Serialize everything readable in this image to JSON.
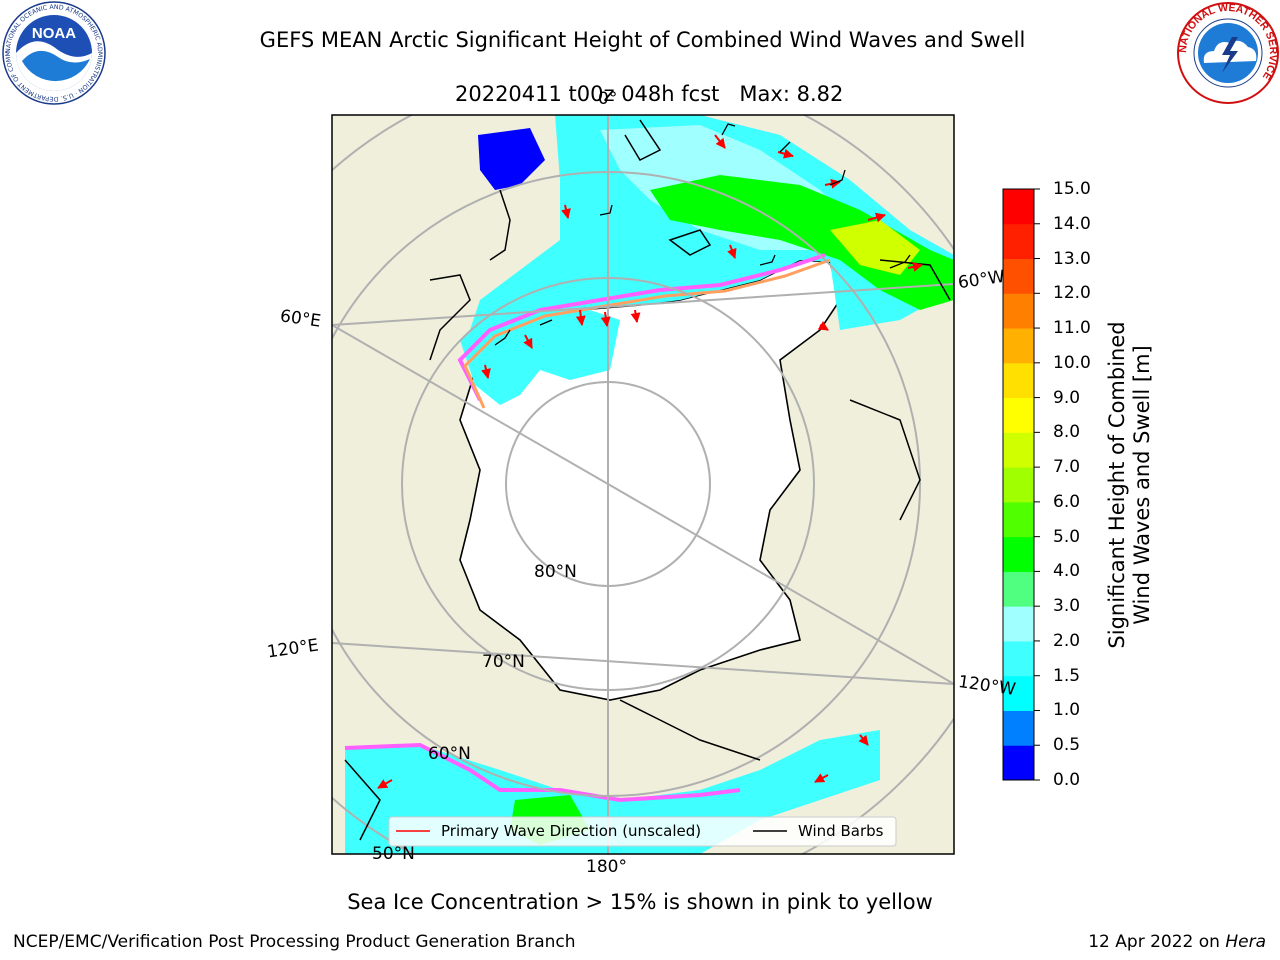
{
  "title": {
    "line1": "GEFS MEAN Arctic Significant Height of Combined Wind Waves and Swell",
    "line2": "20220411 t00z 048h fcst",
    "max_text": "Max: 8.82"
  },
  "logos": {
    "noaa_text": "NOAA",
    "noaa_ring_text": "NATIONAL OCEANIC AND ATMOSPHERIC ADMINISTRATION · U.S. DEPARTMENT OF COMMERCE",
    "nws_ring_text": "NATIONAL WEATHER SERVICE"
  },
  "map": {
    "projection": "north-polar-stereographic",
    "lon_labels": [
      "0°",
      "60°W",
      "120°W",
      "180°",
      "120°E",
      "60°E"
    ],
    "lat_labels": [
      "80°N",
      "70°N",
      "60°N",
      "50°N"
    ],
    "land_color": "#efefdc",
    "ocean_ice_color": "#ffffff",
    "graticule_color": "#b0b0b0"
  },
  "legend": {
    "wave_direction": "Primary Wave Direction (unscaled)",
    "wind_barbs": "Wind Barbs",
    "wave_color": "#ff0000",
    "barb_color": "#000000"
  },
  "colorbar": {
    "label_line1": "Significant Height of Combined",
    "label_line2": "Wind Waves and Swell [m]",
    "ticks": [
      "0.0",
      "0.5",
      "1.0",
      "1.5",
      "2.0",
      "3.0",
      "4.0",
      "5.0",
      "6.0",
      "7.0",
      "8.0",
      "9.0",
      "10.0",
      "11.0",
      "12.0",
      "13.0",
      "14.0",
      "15.0"
    ],
    "colors": [
      "#0000ff",
      "#0080ff",
      "#00ffff",
      "#40ffff",
      "#a0ffff",
      "#50ff80",
      "#00ff00",
      "#50ff00",
      "#a0ff00",
      "#d0ff00",
      "#ffff00",
      "#ffe000",
      "#ffb000",
      "#ff8000",
      "#ff5000",
      "#ff2000",
      "#ff0000"
    ]
  },
  "note": "Sea Ice Concentration > 15% is shown in pink to yellow",
  "footer": {
    "left": "NCEP/EMC/Verification Post Processing Product Generation Branch",
    "date": "12 Apr 2022 on ",
    "host": "Hera"
  }
}
